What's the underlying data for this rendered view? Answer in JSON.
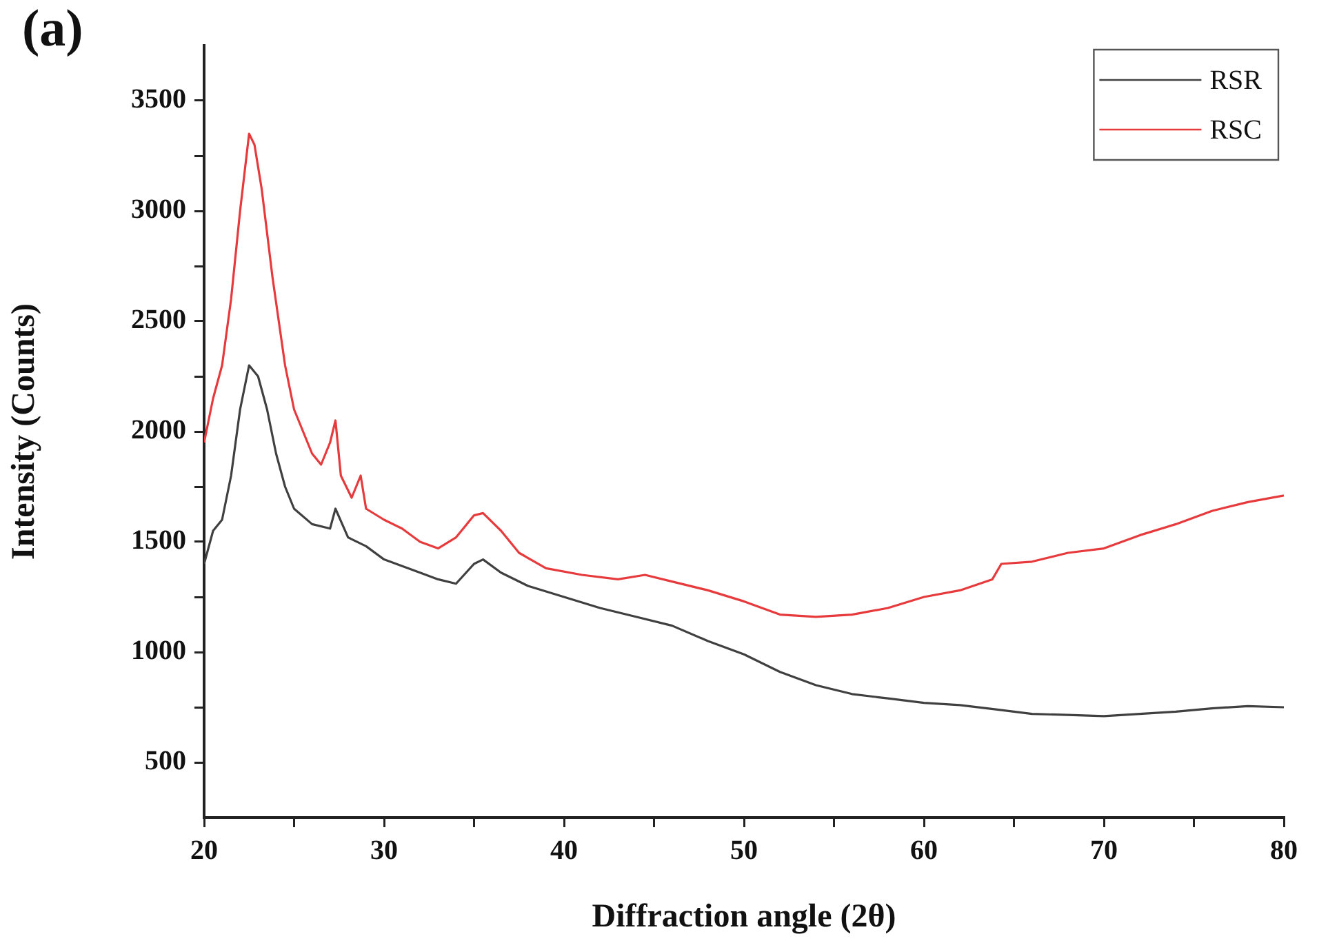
{
  "chart_data": {
    "type": "line",
    "xlabel": "Diffraction angle (2θ)",
    "ylabel": "Intensity (Counts)",
    "annotations": [
      "(a)"
    ],
    "xlim": [
      20,
      80
    ],
    "ylim": [
      250,
      3750
    ],
    "xticks": [
      20,
      {
        "value": 25,
        "label": null
      },
      30,
      {
        "value": 35,
        "label": null
      },
      40,
      {
        "value": 45,
        "label": null
      },
      50,
      {
        "value": 55,
        "label": null
      },
      60,
      {
        "value": 65,
        "label": null
      },
      70,
      {
        "value": 75,
        "label": null
      },
      80
    ],
    "yticks": [
      500,
      {
        "value": 750,
        "label": null
      },
      1000,
      {
        "value": 1250,
        "label": null
      },
      1500,
      {
        "value": 1750,
        "label": null
      },
      2000,
      {
        "value": 2250,
        "label": null
      },
      2500,
      {
        "value": 2750,
        "label": null
      },
      3000,
      {
        "value": 3250,
        "label": null
      },
      3500
    ],
    "grid": false,
    "legend": "top right",
    "marker": "none",
    "line_style": "solid",
    "series": [
      {
        "name": "RSR",
        "color": "#404040",
        "x": [
          20,
          20.5,
          21,
          21.5,
          22,
          22.5,
          23,
          23.5,
          24,
          24.5,
          25,
          26,
          27,
          27.3,
          28,
          29,
          30,
          32,
          33,
          34,
          35,
          35.5,
          36.5,
          38,
          40,
          42,
          44,
          46,
          48,
          50,
          52,
          54,
          56,
          58,
          60,
          62,
          64,
          66,
          68,
          70,
          72,
          74,
          76,
          78,
          80
        ],
        "values": [
          1400,
          1550,
          1600,
          1800,
          2100,
          2300,
          2250,
          2100,
          1900,
          1750,
          1650,
          1580,
          1560,
          1650,
          1520,
          1480,
          1420,
          1360,
          1330,
          1310,
          1400,
          1420,
          1360,
          1300,
          1250,
          1200,
          1160,
          1120,
          1050,
          990,
          910,
          850,
          810,
          790,
          770,
          760,
          740,
          720,
          715,
          710,
          720,
          730,
          745,
          755,
          750
        ]
      },
      {
        "name": "RSC",
        "color": "#e63a3c",
        "x": [
          20,
          20.5,
          21,
          21.5,
          22,
          22.5,
          22.8,
          23.2,
          23.8,
          24.5,
          25,
          26,
          26.5,
          27,
          27.3,
          27.6,
          28.2,
          28.7,
          29,
          30,
          31,
          32,
          33,
          34,
          35,
          35.5,
          36.5,
          37.5,
          39,
          41,
          43,
          44.5,
          46,
          48,
          50,
          52,
          54,
          56,
          58,
          60,
          62,
          63.8,
          64.3,
          66,
          68,
          70,
          72,
          74,
          76,
          78,
          80
        ],
        "values": [
          1950,
          2150,
          2300,
          2600,
          3000,
          3350,
          3300,
          3100,
          2700,
          2300,
          2100,
          1900,
          1850,
          1950,
          2050,
          1800,
          1700,
          1800,
          1650,
          1600,
          1560,
          1500,
          1470,
          1520,
          1620,
          1630,
          1550,
          1450,
          1380,
          1350,
          1330,
          1350,
          1320,
          1280,
          1230,
          1170,
          1160,
          1170,
          1200,
          1250,
          1280,
          1330,
          1400,
          1410,
          1450,
          1470,
          1530,
          1580,
          1640,
          1680,
          1710
        ]
      }
    ]
  }
}
